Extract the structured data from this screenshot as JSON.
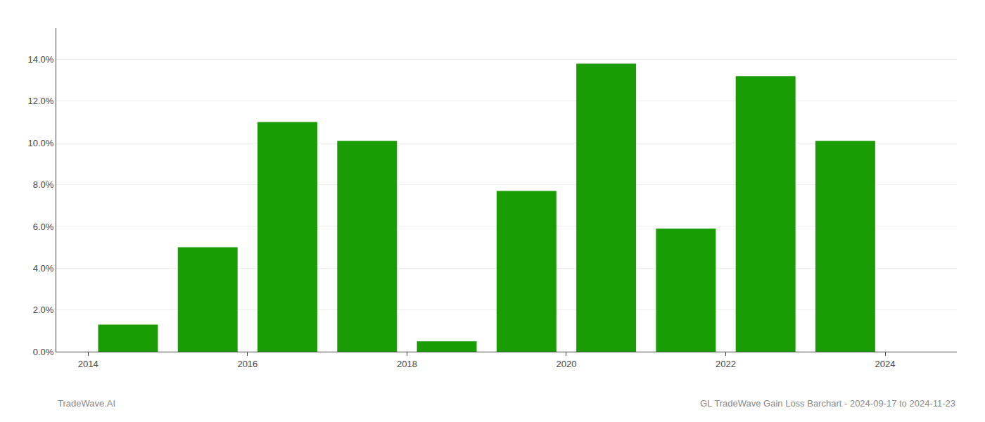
{
  "chart_data": {
    "type": "bar",
    "x": [
      2014,
      2015,
      2016,
      2017,
      2018,
      2019,
      2020,
      2021,
      2022,
      2023
    ],
    "values": [
      0.013,
      0.05,
      0.11,
      0.101,
      0.005,
      0.077,
      0.138,
      0.059,
      0.132,
      0.101
    ],
    "color": "#1a9c05",
    "xlim": [
      2013.1,
      2024.4
    ],
    "xticks": [
      {
        "value": 2013.5,
        "label": "2014"
      },
      {
        "value": 2015.5,
        "label": "2016"
      },
      {
        "value": 2017.5,
        "label": "2018"
      },
      {
        "value": 2019.5,
        "label": "2020"
      },
      {
        "value": 2021.5,
        "label": "2022"
      },
      {
        "value": 2023.5,
        "label": "2024"
      }
    ],
    "ylim": [
      0,
      0.155
    ],
    "yticks": [
      {
        "value": 0.0,
        "label": "0.0%"
      },
      {
        "value": 0.02,
        "label": "2.0%"
      },
      {
        "value": 0.04,
        "label": "4.0%"
      },
      {
        "value": 0.06,
        "label": "6.0%"
      },
      {
        "value": 0.08,
        "label": "8.0%"
      },
      {
        "value": 0.1,
        "label": "10.0%"
      },
      {
        "value": 0.12,
        "label": "12.0%"
      },
      {
        "value": 0.14,
        "label": "14.0%"
      }
    ],
    "grid": true,
    "annotations": [
      "TradeWave.AI",
      "GL TradeWave Gain Loss Barchart - 2024-09-17 to 2024-11-23"
    ]
  }
}
